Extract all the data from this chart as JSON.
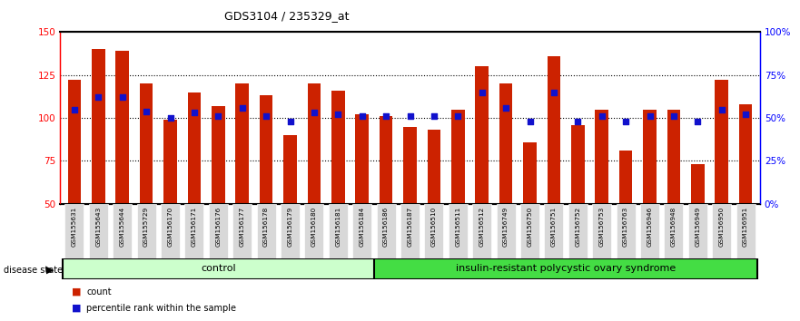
{
  "title": "GDS3104 / 235329_at",
  "samples": [
    "GSM155631",
    "GSM155643",
    "GSM155644",
    "GSM155729",
    "GSM156170",
    "GSM156171",
    "GSM156176",
    "GSM156177",
    "GSM156178",
    "GSM156179",
    "GSM156180",
    "GSM156181",
    "GSM156184",
    "GSM156186",
    "GSM156187",
    "GSM156510",
    "GSM156511",
    "GSM156512",
    "GSM156749",
    "GSM156750",
    "GSM156751",
    "GSM156752",
    "GSM156753",
    "GSM156763",
    "GSM156946",
    "GSM156948",
    "GSM156949",
    "GSM156950",
    "GSM156951"
  ],
  "bar_values": [
    122,
    140,
    139,
    120,
    99,
    115,
    107,
    120,
    113,
    90,
    120,
    116,
    102,
    101,
    95,
    93,
    105,
    130,
    120,
    86,
    136,
    96,
    105,
    81,
    105,
    105,
    73,
    122,
    108
  ],
  "percentile_values": [
    55,
    62,
    62,
    54,
    50,
    53,
    51,
    56,
    51,
    48,
    53,
    52,
    51,
    51,
    51,
    51,
    51,
    65,
    56,
    48,
    65,
    48,
    51,
    48,
    51,
    51,
    48,
    55,
    52
  ],
  "control_count": 13,
  "disease_count": 16,
  "ylim_left": [
    50,
    150
  ],
  "ylim_right": [
    0,
    100
  ],
  "yticks_left": [
    50,
    75,
    100,
    125,
    150
  ],
  "ytick_labels_left": [
    "50",
    "75",
    "100",
    "125",
    "150"
  ],
  "yticks_right_pct": [
    0,
    25,
    50,
    75,
    100
  ],
  "ytick_labels_right": [
    "0%",
    "25%",
    "50%",
    "75%",
    "100%"
  ],
  "bar_color": "#CC2200",
  "dot_color": "#1111CC",
  "control_label": "control",
  "disease_label": "insulin-resistant polycystic ovary syndrome",
  "control_bg": "#CCFFCC",
  "disease_bg": "#44DD44",
  "legend_count_label": "count",
  "legend_pct_label": "percentile rank within the sample",
  "grid_yticks": [
    75,
    100,
    125
  ]
}
